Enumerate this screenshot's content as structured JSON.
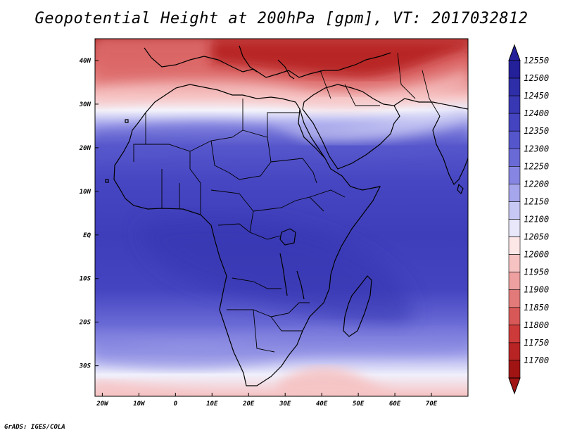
{
  "title": "Geopotential Height at 200hPa [gpm], VT: 2017032812",
  "footer": "GrADS: IGES/COLA",
  "map": {
    "lon_range": [
      -22,
      80
    ],
    "lat_range": [
      -37,
      45
    ],
    "x_ticks": [
      {
        "lon": -20,
        "label": "20W"
      },
      {
        "lon": -10,
        "label": "10W"
      },
      {
        "lon": 0,
        "label": "0"
      },
      {
        "lon": 10,
        "label": "10E"
      },
      {
        "lon": 20,
        "label": "20E"
      },
      {
        "lon": 30,
        "label": "30E"
      },
      {
        "lon": 40,
        "label": "40E"
      },
      {
        "lon": 50,
        "label": "50E"
      },
      {
        "lon": 60,
        "label": "60E"
      },
      {
        "lon": 70,
        "label": "70E"
      }
    ],
    "y_ticks": [
      {
        "lat": 40,
        "label": "40N"
      },
      {
        "lat": 30,
        "label": "30N"
      },
      {
        "lat": 20,
        "label": "20N"
      },
      {
        "lat": 10,
        "label": "10N"
      },
      {
        "lat": 0,
        "label": "EQ"
      },
      {
        "lat": -10,
        "label": "10S"
      },
      {
        "lat": -20,
        "label": "20S"
      },
      {
        "lat": -30,
        "label": "30S"
      }
    ]
  },
  "colorbar": {
    "levels": [
      "12550",
      "12500",
      "12450",
      "12400",
      "12350",
      "12300",
      "12250",
      "12200",
      "12150",
      "12100",
      "12050",
      "12000",
      "11950",
      "11900",
      "11850",
      "11800",
      "11750",
      "11700"
    ],
    "colors": [
      "#24209a",
      "#2e2ea8",
      "#3838b4",
      "#4444c0",
      "#5656cc",
      "#6a6ad6",
      "#8686e2",
      "#a6a6ec",
      "#c8c8f4",
      "#e8e8fa",
      "#fde6e6",
      "#f6c2c2",
      "#eea0a0",
      "#e27a7a",
      "#d85858",
      "#cc3a3a",
      "#b82424",
      "#a01414"
    ]
  }
}
